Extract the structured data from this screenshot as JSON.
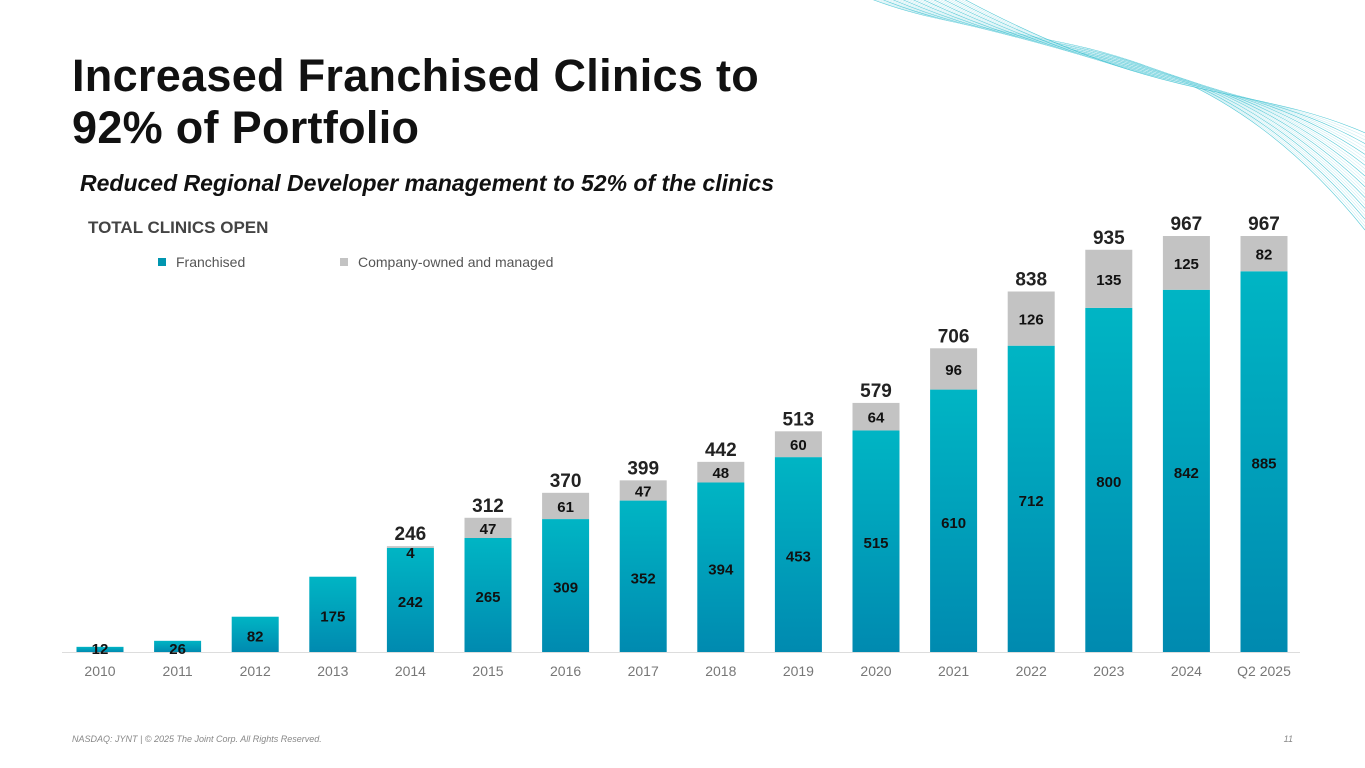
{
  "title_line1": "Increased Franchised Clinics to",
  "title_line2": "92% of Portfolio",
  "subtitle": "Reduced Regional Developer management to 52% of the clinics",
  "footer": "NASDAQ: JYNT   |  © 2025 The Joint Corp. All Rights Reserved.",
  "page_number": "11",
  "chart_data": {
    "type": "bar",
    "stacked": true,
    "title": "TOTAL CLINICS OPEN",
    "categories": [
      "2010",
      "2011",
      "2012",
      "2013",
      "2014",
      "2015",
      "2016",
      "2017",
      "2018",
      "2019",
      "2020",
      "2021",
      "2022",
      "2023",
      "2024",
      "Q2 2025"
    ],
    "series": [
      {
        "name": "Franchised",
        "color": "#00a3b8",
        "values": [
          12,
          26,
          82,
          175,
          242,
          265,
          309,
          352,
          394,
          453,
          515,
          610,
          712,
          800,
          842,
          885
        ]
      },
      {
        "name": "Company-owned and managed",
        "color": "#c3c3c3",
        "values": [
          null,
          null,
          null,
          null,
          4,
          47,
          61,
          47,
          48,
          60,
          64,
          96,
          126,
          135,
          125,
          82
        ]
      }
    ],
    "totals": [
      null,
      null,
      null,
      null,
      246,
      312,
      370,
      399,
      442,
      513,
      579,
      706,
      838,
      935,
      967,
      967
    ],
    "ylim": [
      0,
      967
    ],
    "legend": "top-left",
    "grid": false
  }
}
